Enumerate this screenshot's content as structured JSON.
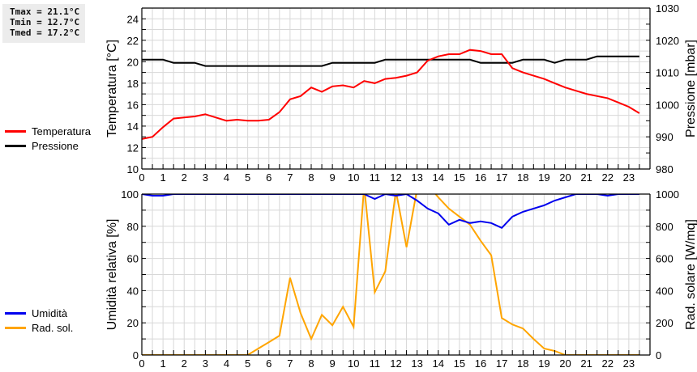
{
  "stats": {
    "tmax": "Tmax = 21.1°C",
    "tmin": "Tmin = 12.7°C",
    "tmed": "Tmed = 17.2°C"
  },
  "legend_top": [
    {
      "label": "Temperatura",
      "color": "#ff0000"
    },
    {
      "label": "Pressione",
      "color": "#000000"
    }
  ],
  "legend_bottom": [
    {
      "label": "Umidità",
      "color": "#0000ee"
    },
    {
      "label": "Rad. sol.",
      "color": "#ffa500"
    }
  ],
  "chart_data": [
    {
      "type": "line",
      "title": "",
      "xlabel": "",
      "ylabel": "Temperatura [°C]",
      "y2label": "Pressione [mbar]",
      "xlim": [
        0,
        24
      ],
      "ylim": [
        10,
        25
      ],
      "y2lim": [
        980,
        1030
      ],
      "xticks": [
        "0",
        "1",
        "2",
        "3",
        "4",
        "5",
        "6",
        "7",
        "8",
        "9",
        "10",
        "11",
        "12",
        "13",
        "14",
        "15",
        "16",
        "17",
        "18",
        "19",
        "20",
        "21",
        "22",
        "23"
      ],
      "yticks": [
        "10",
        "12",
        "14",
        "16",
        "18",
        "20",
        "22",
        "24"
      ],
      "y2ticks": [
        "980",
        "990",
        "1000",
        "1010",
        "1020",
        "1030"
      ],
      "grid": true,
      "legend_position": "left",
      "x": [
        0,
        0.5,
        1,
        1.5,
        2,
        2.5,
        3,
        3.5,
        4,
        4.5,
        5,
        5.5,
        6,
        6.5,
        7,
        7.5,
        8,
        8.5,
        9,
        9.5,
        10,
        10.5,
        11,
        11.5,
        12,
        12.5,
        13,
        13.5,
        14,
        14.5,
        15,
        15.5,
        16,
        16.5,
        17,
        17.5,
        18,
        18.5,
        19,
        19.5,
        20,
        20.5,
        21,
        21.5,
        22,
        22.5,
        23,
        23.5
      ],
      "series": [
        {
          "name": "Temperatura",
          "axis": "left",
          "color": "#ff0000",
          "values": [
            12.8,
            13.0,
            13.9,
            14.7,
            14.8,
            14.9,
            15.1,
            14.8,
            14.5,
            14.6,
            14.5,
            14.5,
            14.6,
            15.3,
            16.5,
            16.8,
            17.6,
            17.2,
            17.7,
            17.8,
            17.6,
            18.2,
            18.0,
            18.4,
            18.5,
            18.7,
            19.0,
            20.1,
            20.5,
            20.7,
            20.7,
            21.1,
            21.0,
            20.7,
            20.7,
            19.4,
            19.0,
            18.7,
            18.4,
            18.0,
            17.6,
            17.3,
            17.0,
            16.8,
            16.6,
            16.2,
            15.8,
            15.2
          ]
        },
        {
          "name": "Pressione",
          "axis": "right",
          "color": "#000000",
          "values": [
            1014,
            1014,
            1014,
            1013,
            1013,
            1013,
            1012,
            1012,
            1012,
            1012,
            1012,
            1012,
            1012,
            1012,
            1012,
            1012,
            1012,
            1012,
            1013,
            1013,
            1013,
            1013,
            1013,
            1014,
            1014,
            1014,
            1014,
            1014,
            1014,
            1014,
            1014,
            1014,
            1013,
            1013,
            1013,
            1013,
            1014,
            1014,
            1014,
            1013,
            1014,
            1014,
            1014,
            1015,
            1015,
            1015,
            1015,
            1015
          ]
        }
      ]
    },
    {
      "type": "line",
      "title": "",
      "xlabel": "",
      "ylabel": "Umidità relativa [%]",
      "y2label": "Rad. solare [W/mq]",
      "xlim": [
        0,
        24
      ],
      "ylim": [
        0,
        100
      ],
      "y2lim": [
        0,
        1000
      ],
      "xticks": [
        "0",
        "1",
        "2",
        "3",
        "4",
        "5",
        "6",
        "7",
        "8",
        "9",
        "10",
        "11",
        "12",
        "13",
        "14",
        "15",
        "16",
        "17",
        "18",
        "19",
        "20",
        "21",
        "22",
        "23"
      ],
      "yticks": [
        "0",
        "20",
        "40",
        "60",
        "80",
        "100"
      ],
      "y2ticks": [
        "0",
        "200",
        "400",
        "600",
        "800",
        "1000"
      ],
      "grid": true,
      "legend_position": "left",
      "x": [
        0,
        0.5,
        1,
        1.5,
        2,
        2.5,
        3,
        3.5,
        4,
        4.5,
        5,
        5.5,
        6,
        6.5,
        7,
        7.5,
        8,
        8.5,
        9,
        9.5,
        10,
        10.5,
        11,
        11.5,
        12,
        12.5,
        13,
        13.5,
        14,
        14.5,
        15,
        15.5,
        16,
        16.5,
        17,
        17.5,
        18,
        18.5,
        19,
        19.5,
        20,
        20.5,
        21,
        21.5,
        22,
        22.5,
        23,
        23.5
      ],
      "series": [
        {
          "name": "Umidità",
          "axis": "left",
          "color": "#0000ee",
          "values": [
            100,
            99,
            99,
            100,
            100,
            100,
            100,
            100,
            100,
            100,
            100,
            100,
            100,
            100,
            100,
            100,
            100,
            100,
            100,
            100,
            100,
            100,
            97,
            100,
            99,
            100,
            96,
            91,
            88,
            81,
            84,
            82,
            83,
            82,
            79,
            86,
            89,
            91,
            93,
            96,
            98,
            100,
            100,
            100,
            99,
            100,
            100,
            100
          ]
        },
        {
          "name": "Rad. sol.",
          "axis": "right",
          "color": "#ffa500",
          "values": [
            0,
            0,
            0,
            0,
            0,
            0,
            0,
            0,
            0,
            0,
            0,
            40,
            80,
            120,
            480,
            260,
            100,
            250,
            185,
            300,
            175,
            1050,
            390,
            520,
            1020,
            670,
            1030,
            1060,
            980,
            910,
            860,
            810,
            710,
            620,
            230,
            190,
            165,
            100,
            40,
            25,
            0,
            0,
            0,
            0,
            0,
            0,
            0,
            0
          ]
        }
      ]
    }
  ]
}
